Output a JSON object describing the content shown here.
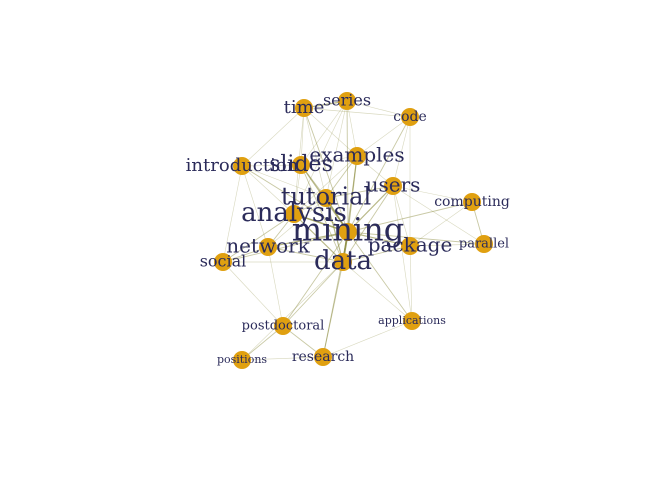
{
  "chart_data": {
    "type": "network",
    "title": "",
    "node_color": "#e0a010",
    "label_color": "#2b2b5a",
    "edge_color": "#8a8a3a",
    "nodes": [
      {
        "id": "mining",
        "label": "mining"
      },
      {
        "id": "data",
        "label": "data"
      },
      {
        "id": "tutorial",
        "label": "tutorial"
      },
      {
        "id": "analysis",
        "label": "analysis"
      },
      {
        "id": "slides",
        "label": "slides"
      },
      {
        "id": "examples",
        "label": "examples"
      },
      {
        "id": "users",
        "label": "users"
      },
      {
        "id": "package",
        "label": "package"
      },
      {
        "id": "network",
        "label": "network"
      },
      {
        "id": "introduction",
        "label": "introduction"
      },
      {
        "id": "time",
        "label": "time"
      },
      {
        "id": "series",
        "label": "series"
      },
      {
        "id": "code",
        "label": "code"
      },
      {
        "id": "computing",
        "label": "computing"
      },
      {
        "id": "parallel",
        "label": "parallel"
      },
      {
        "id": "social",
        "label": "social"
      },
      {
        "id": "postdoctoral",
        "label": "postdoctoral"
      },
      {
        "id": "applications",
        "label": "applications"
      },
      {
        "id": "positions",
        "label": "positions"
      },
      {
        "id": "research",
        "label": "research"
      }
    ],
    "edges": [
      [
        "mining",
        "data",
        5
      ],
      [
        "mining",
        "tutorial",
        4
      ],
      [
        "mining",
        "analysis",
        4
      ],
      [
        "mining",
        "slides",
        3
      ],
      [
        "mining",
        "examples",
        3
      ],
      [
        "mining",
        "users",
        3
      ],
      [
        "mining",
        "package",
        3
      ],
      [
        "mining",
        "network",
        3
      ],
      [
        "mining",
        "introduction",
        2
      ],
      [
        "mining",
        "time",
        2
      ],
      [
        "mining",
        "series",
        2
      ],
      [
        "mining",
        "code",
        2
      ],
      [
        "mining",
        "computing",
        2
      ],
      [
        "mining",
        "parallel",
        2
      ],
      [
        "mining",
        "social",
        2
      ],
      [
        "mining",
        "postdoctoral",
        2
      ],
      [
        "mining",
        "applications",
        2
      ],
      [
        "mining",
        "research",
        2
      ],
      [
        "data",
        "tutorial",
        3
      ],
      [
        "data",
        "analysis",
        3
      ],
      [
        "data",
        "slides",
        2
      ],
      [
        "data",
        "examples",
        2
      ],
      [
        "data",
        "users",
        2
      ],
      [
        "data",
        "package",
        2
      ],
      [
        "data",
        "network",
        2
      ],
      [
        "data",
        "postdoctoral",
        2
      ],
      [
        "data",
        "research",
        2
      ],
      [
        "data",
        "positions",
        1
      ],
      [
        "data",
        "applications",
        1
      ],
      [
        "data",
        "social",
        1
      ],
      [
        "tutorial",
        "analysis",
        2
      ],
      [
        "tutorial",
        "slides",
        2
      ],
      [
        "tutorial",
        "examples",
        2
      ],
      [
        "tutorial",
        "users",
        2
      ],
      [
        "tutorial",
        "introduction",
        1
      ],
      [
        "tutorial",
        "time",
        1
      ],
      [
        "tutorial",
        "series",
        1
      ],
      [
        "tutorial",
        "network",
        1
      ],
      [
        "analysis",
        "network",
        2
      ],
      [
        "analysis",
        "social",
        2
      ],
      [
        "analysis",
        "slides",
        1
      ],
      [
        "analysis",
        "introduction",
        1
      ],
      [
        "analysis",
        "time",
        1
      ],
      [
        "analysis",
        "series",
        1
      ],
      [
        "analysis",
        "examples",
        1
      ],
      [
        "slides",
        "examples",
        1
      ],
      [
        "slides",
        "introduction",
        1
      ],
      [
        "slides",
        "time",
        1
      ],
      [
        "slides",
        "series",
        1
      ],
      [
        "examples",
        "code",
        1
      ],
      [
        "examples",
        "users",
        1
      ],
      [
        "examples",
        "series",
        1
      ],
      [
        "examples",
        "time",
        1
      ],
      [
        "time",
        "series",
        3
      ],
      [
        "series",
        "code",
        1
      ],
      [
        "time",
        "code",
        1
      ],
      [
        "users",
        "code",
        1
      ],
      [
        "users",
        "package",
        1
      ],
      [
        "users",
        "computing",
        1
      ],
      [
        "package",
        "computing",
        1
      ],
      [
        "package",
        "parallel",
        1
      ],
      [
        "computing",
        "parallel",
        2
      ],
      [
        "network",
        "social",
        2
      ],
      [
        "network",
        "postdoctoral",
        1
      ],
      [
        "social",
        "postdoctoral",
        1
      ],
      [
        "postdoctoral",
        "positions",
        2
      ],
      [
        "postdoctoral",
        "research",
        2
      ],
      [
        "positions",
        "research",
        1
      ],
      [
        "research",
        "applications",
        1
      ],
      [
        "applications",
        "package",
        1
      ],
      [
        "applications",
        "users",
        1
      ],
      [
        "introduction",
        "time",
        1
      ],
      [
        "introduction",
        "network",
        1
      ],
      [
        "introduction",
        "social",
        1
      ],
      [
        "code",
        "package",
        1
      ],
      [
        "parallel",
        "users",
        1
      ]
    ]
  }
}
